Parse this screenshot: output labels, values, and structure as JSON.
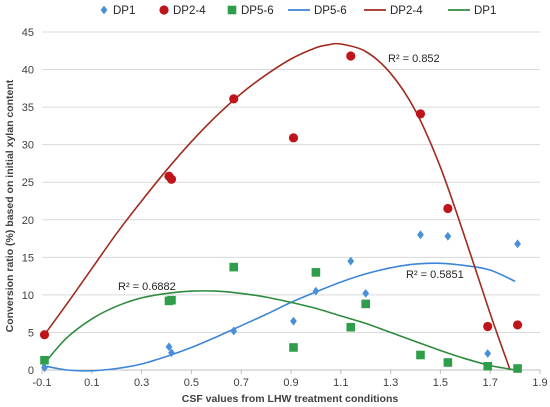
{
  "chart_data": {
    "type": "scatter",
    "xlabel": "CSF values from LHW treatment conditions",
    "ylabel": "Conversion ratio (%) based on initial xylan content",
    "xlim": [
      -0.1,
      1.9
    ],
    "ylim": [
      0,
      45
    ],
    "x_ticks": [
      "-0.1",
      "0.1",
      "0.3",
      "0.5",
      "0.7",
      "0.9",
      "1.1",
      "1.3",
      "1.5",
      "1.7",
      "1.9"
    ],
    "y_ticks": [
      "0",
      "5",
      "10",
      "15",
      "20",
      "25",
      "30",
      "35",
      "40",
      "45"
    ],
    "grid": "horizontal",
    "legend_position": "top",
    "legend": [
      "DP1",
      "DP2-4",
      "DP5-6",
      "DP5-6",
      "DP2-4",
      "DP1"
    ],
    "series": [
      {
        "name": "DP1",
        "marker": "diamond",
        "color": "#4a90d9",
        "points": [
          [
            -0.09,
            0.3
          ],
          [
            0.41,
            3.1
          ],
          [
            0.42,
            2.3
          ],
          [
            0.67,
            5.2
          ],
          [
            0.91,
            6.5
          ],
          [
            1.0,
            10.5
          ],
          [
            1.14,
            14.5
          ],
          [
            1.2,
            10.2
          ],
          [
            1.42,
            18.0
          ],
          [
            1.53,
            17.8
          ],
          [
            1.69,
            2.2
          ],
          [
            1.81,
            16.8
          ]
        ]
      },
      {
        "name": "DP2-4",
        "marker": "circle",
        "color": "#c0141b",
        "points": [
          [
            -0.09,
            4.7
          ],
          [
            0.41,
            25.8
          ],
          [
            0.42,
            25.4
          ],
          [
            0.67,
            36.1
          ],
          [
            0.91,
            30.9
          ],
          [
            1.14,
            41.8
          ],
          [
            1.42,
            34.1
          ],
          [
            1.53,
            21.5
          ],
          [
            1.69,
            5.8
          ],
          [
            1.81,
            6.0
          ]
        ]
      },
      {
        "name": "DP5-6",
        "marker": "square",
        "color": "#2e9e4a",
        "points": [
          [
            -0.09,
            1.3
          ],
          [
            0.41,
            9.2
          ],
          [
            0.42,
            9.3
          ],
          [
            0.67,
            13.7
          ],
          [
            0.91,
            3.0
          ],
          [
            1.0,
            13.0
          ],
          [
            1.14,
            5.7
          ],
          [
            1.2,
            8.8
          ],
          [
            1.42,
            2.0
          ],
          [
            1.53,
            1.0
          ],
          [
            1.69,
            0.5
          ],
          [
            1.81,
            0.2
          ]
        ]
      }
    ],
    "trendlines": [
      {
        "name": "DP5-6",
        "color": "#3d85d6",
        "points": [
          [
            -0.1,
            0.6
          ],
          [
            0.0,
            0.0
          ],
          [
            0.1,
            -0.1
          ],
          [
            0.2,
            0.2
          ],
          [
            0.3,
            0.8
          ],
          [
            0.4,
            1.8
          ],
          [
            0.5,
            3.0
          ],
          [
            0.6,
            4.4
          ],
          [
            0.7,
            5.9
          ],
          [
            0.8,
            7.4
          ],
          [
            0.9,
            9.0
          ],
          [
            1.0,
            10.4
          ],
          [
            1.1,
            11.7
          ],
          [
            1.2,
            12.8
          ],
          [
            1.3,
            13.6
          ],
          [
            1.4,
            14.1
          ],
          [
            1.5,
            14.2
          ],
          [
            1.6,
            13.9
          ],
          [
            1.7,
            13.3
          ],
          [
            1.8,
            11.8
          ]
        ],
        "r2": "R² = 0.5851"
      },
      {
        "name": "DP2-4",
        "color": "#a02b1f",
        "points": [
          [
            -0.09,
            4.7
          ],
          [
            0.0,
            8.8
          ],
          [
            0.1,
            13.5
          ],
          [
            0.2,
            18.2
          ],
          [
            0.3,
            22.5
          ],
          [
            0.4,
            26.6
          ],
          [
            0.5,
            30.4
          ],
          [
            0.6,
            33.8
          ],
          [
            0.7,
            36.8
          ],
          [
            0.8,
            39.3
          ],
          [
            0.9,
            41.4
          ],
          [
            1.0,
            42.9
          ],
          [
            1.05,
            43.3
          ],
          [
            1.1,
            43.4
          ],
          [
            1.2,
            42.4
          ],
          [
            1.3,
            39.5
          ],
          [
            1.4,
            34.5
          ],
          [
            1.5,
            27.0
          ],
          [
            1.6,
            17.5
          ],
          [
            1.7,
            7.5
          ],
          [
            1.78,
            0.0
          ]
        ],
        "r2": "R² = 0.852"
      },
      {
        "name": "DP1",
        "color": "#2e8b3e",
        "points": [
          [
            -0.09,
            0.9
          ],
          [
            0.0,
            4.3
          ],
          [
            0.1,
            6.8
          ],
          [
            0.2,
            8.5
          ],
          [
            0.3,
            9.6
          ],
          [
            0.4,
            10.2
          ],
          [
            0.5,
            10.5
          ],
          [
            0.6,
            10.5
          ],
          [
            0.7,
            10.2
          ],
          [
            0.8,
            9.7
          ],
          [
            0.9,
            9.0
          ],
          [
            1.0,
            8.2
          ],
          [
            1.1,
            7.2
          ],
          [
            1.2,
            6.2
          ],
          [
            1.3,
            5.0
          ],
          [
            1.4,
            3.8
          ],
          [
            1.5,
            2.6
          ],
          [
            1.6,
            1.5
          ],
          [
            1.7,
            0.6
          ],
          [
            1.8,
            0.0
          ]
        ],
        "r2": "R² = 0.6882"
      }
    ]
  }
}
